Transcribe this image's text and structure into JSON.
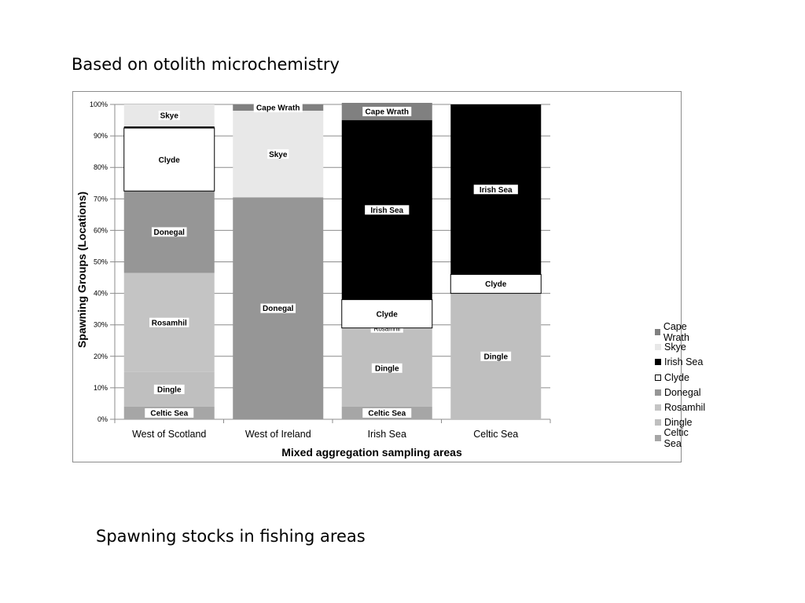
{
  "slide": {
    "heading": "Based on otolith microchemistry",
    "caption": "Spawning stocks in fishing areas"
  },
  "chart_data": {
    "type": "bar",
    "stacked": true,
    "normalized_percent": true,
    "title": "",
    "xlabel": "Mixed aggregation sampling areas",
    "ylabel": "Spawning  Groups (Locations)",
    "ylim": [
      0,
      100
    ],
    "yticks": [
      "0%",
      "10%",
      "20%",
      "30%",
      "40%",
      "50%",
      "60%",
      "70%",
      "80%",
      "90%",
      "100%"
    ],
    "grid": true,
    "legend_position": "right",
    "categories": [
      "West of Scotland",
      "West of Ireland",
      "Irish Sea",
      "Celtic Sea"
    ],
    "series": [
      {
        "name": "Celtic Sea",
        "color": "#a6a6a6",
        "values": [
          4,
          0,
          4,
          0
        ],
        "labels": [
          "Celtic Sea",
          "",
          "Celtic Sea",
          ""
        ]
      },
      {
        "name": "Dingle",
        "color": "#bfbfbf",
        "values": [
          11,
          0,
          24.5,
          40
        ],
        "labels": [
          "Dingle",
          "",
          "Dingle",
          "Dingle"
        ]
      },
      {
        "name": "Rosamhil",
        "color": "#c4c4c4",
        "values": [
          31.5,
          0,
          0.5,
          0
        ],
        "labels": [
          "Rosamhil",
          "",
          "Rosamhil",
          ""
        ]
      },
      {
        "name": "Donegal",
        "color": "#969696",
        "values": [
          26,
          70.5,
          0,
          0
        ],
        "labels": [
          "Donegal",
          "Donegal",
          "",
          ""
        ]
      },
      {
        "name": "Clyde",
        "color": "#ffffff",
        "values": [
          20,
          0,
          9,
          6
        ],
        "labels": [
          "Clyde",
          "",
          "Clyde",
          "Clyde"
        ]
      },
      {
        "name": "Irish Sea",
        "color": "#000000",
        "values": [
          0.5,
          0,
          57,
          54
        ],
        "labels": [
          "",
          "",
          "Irish Sea",
          "Irish Sea"
        ]
      },
      {
        "name": "Skye",
        "color": "#e8e8e8",
        "values": [
          7,
          27.5,
          0,
          0
        ],
        "labels": [
          "Skye",
          "Skye",
          "",
          ""
        ]
      },
      {
        "name": "Cape Wrath",
        "color": "#808080",
        "values": [
          0,
          2,
          5.5,
          0
        ],
        "labels": [
          "",
          "Cape Wrath",
          "Cape Wrath",
          ""
        ]
      }
    ],
    "legend_order": [
      "Cape Wrath",
      "Skye",
      "Irish Sea",
      "Clyde",
      "Donegal",
      "Rosamhil",
      "Dingle",
      "Celtic Sea"
    ]
  }
}
